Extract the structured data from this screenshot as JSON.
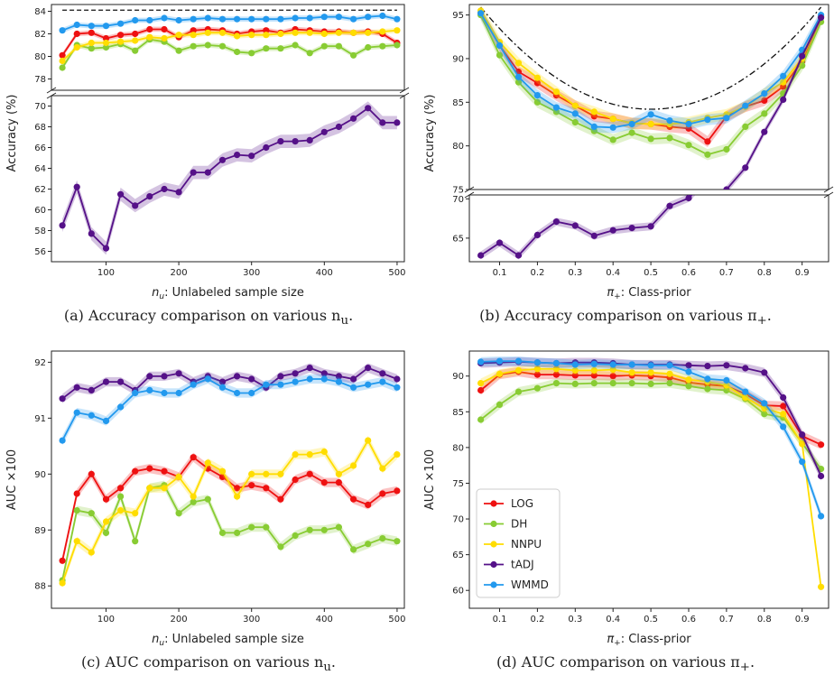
{
  "colors": {
    "LOG": "#ee1111",
    "DH": "#88cc33",
    "NNPU": "#ffdd00",
    "tADJ": "#551188",
    "WMMD": "#2299ee"
  },
  "chart_data": [
    {
      "id": "a",
      "type": "line",
      "caption": "(a) Accuracy comparison on various n",
      "caption_sub": "u",
      "caption_end": ".",
      "xlabel_var": "n",
      "xlabel_sub": "u",
      "xlabel_rest": ": Unlabeled sample size",
      "ylabel": "Accuracy (%)",
      "xlim": [
        25,
        510
      ],
      "xticks": [
        100,
        200,
        300,
        400,
        500
      ],
      "broken": true,
      "ylim_top": [
        77,
        84.6
      ],
      "yticks_top": [
        78,
        80,
        82,
        84
      ],
      "ylim_bottom": [
        55,
        71
      ],
      "yticks_bottom": [
        56,
        58,
        60,
        62,
        64,
        66,
        68,
        70
      ],
      "reference": {
        "y": 84.1,
        "style": "dashed"
      },
      "x": [
        40,
        60,
        80,
        100,
        120,
        140,
        160,
        180,
        200,
        220,
        240,
        260,
        280,
        300,
        320,
        340,
        360,
        380,
        400,
        420,
        440,
        460,
        480,
        500
      ],
      "series": [
        {
          "name": "LOG",
          "panel": "top",
          "values": [
            80.1,
            82.0,
            82.1,
            81.6,
            81.9,
            82.0,
            82.4,
            82.4,
            81.7,
            82.3,
            82.4,
            82.3,
            82.0,
            82.2,
            82.3,
            82.1,
            82.4,
            82.3,
            82.2,
            82.2,
            82.1,
            82.2,
            82.0,
            81.2
          ]
        },
        {
          "name": "DH",
          "panel": "top",
          "values": [
            79.0,
            81.0,
            80.7,
            80.8,
            81.1,
            80.5,
            81.5,
            81.3,
            80.5,
            80.9,
            81.0,
            80.9,
            80.4,
            80.3,
            80.7,
            80.7,
            81.0,
            80.3,
            80.9,
            80.9,
            80.1,
            80.8,
            80.9,
            81.0
          ]
        },
        {
          "name": "NNPU",
          "panel": "top",
          "values": [
            79.6,
            80.8,
            81.2,
            81.2,
            81.3,
            81.4,
            81.7,
            81.6,
            81.9,
            81.9,
            82.1,
            82.1,
            81.8,
            81.9,
            81.9,
            82.0,
            82.1,
            82.1,
            82.0,
            82.1,
            82.1,
            82.1,
            82.2,
            82.3
          ]
        },
        {
          "name": "WMMD",
          "panel": "top",
          "values": [
            82.3,
            82.8,
            82.7,
            82.7,
            82.9,
            83.2,
            83.2,
            83.4,
            83.2,
            83.3,
            83.4,
            83.3,
            83.3,
            83.3,
            83.3,
            83.3,
            83.4,
            83.4,
            83.5,
            83.5,
            83.3,
            83.5,
            83.6,
            83.3
          ]
        },
        {
          "name": "tADJ",
          "panel": "bottom",
          "values": [
            58.5,
            62.2,
            57.7,
            56.3,
            61.5,
            60.4,
            61.3,
            62.0,
            61.7,
            63.6,
            63.6,
            64.8,
            65.3,
            65.2,
            66.0,
            66.6,
            66.6,
            66.7,
            67.5,
            68.0,
            68.8,
            69.8,
            68.4,
            68.4
          ]
        }
      ]
    },
    {
      "id": "b",
      "type": "line",
      "caption": "(b) Accuracy comparison on various π",
      "caption_sub": "+",
      "caption_end": ".",
      "xlabel_var": "π",
      "xlabel_sub": "+",
      "xlabel_rest": ": Class-prior",
      "ylabel": "Accuracy (%)",
      "xlim": [
        0.02,
        0.97
      ],
      "xticks": [
        0.1,
        0.2,
        0.3,
        0.4,
        0.5,
        0.6,
        0.7,
        0.8,
        0.9
      ],
      "broken": true,
      "ylim_top": [
        75,
        96.2
      ],
      "yticks_top": [
        75,
        80,
        85,
        90,
        95
      ],
      "ylim_bottom": [
        62,
        70.5
      ],
      "yticks_bottom": [
        65,
        70
      ],
      "reference": {
        "curve": "dashdot",
        "label": ""
      },
      "x": [
        0.05,
        0.1,
        0.15,
        0.2,
        0.25,
        0.3,
        0.35,
        0.4,
        0.45,
        0.5,
        0.55,
        0.6,
        0.65,
        0.7,
        0.75,
        0.8,
        0.85,
        0.9,
        0.95
      ],
      "series": [
        {
          "name": "LOG",
          "panel": "top",
          "values": [
            95.2,
            91.5,
            88.5,
            87.2,
            85.8,
            84.6,
            83.4,
            83.1,
            82.6,
            82.5,
            82.2,
            82.0,
            80.5,
            83.4,
            84.5,
            85.2,
            86.8,
            89.7,
            94.8
          ]
        },
        {
          "name": "DH",
          "panel": "top",
          "values": [
            95.0,
            90.4,
            87.3,
            85.0,
            83.9,
            82.7,
            81.7,
            80.7,
            81.5,
            80.8,
            80.9,
            80.1,
            79.0,
            79.6,
            82.2,
            83.7,
            86.0,
            89.2,
            94.2
          ]
        },
        {
          "name": "NNPU",
          "panel": "top",
          "values": [
            95.5,
            91.9,
            89.5,
            87.8,
            86.2,
            84.6,
            83.9,
            83.1,
            82.6,
            82.5,
            82.5,
            82.7,
            83.2,
            83.6,
            84.5,
            86.0,
            87.3,
            90.0,
            94.8
          ]
        },
        {
          "name": "WMMD",
          "panel": "top",
          "values": [
            95.2,
            91.5,
            87.9,
            85.8,
            84.4,
            83.7,
            82.2,
            82.1,
            82.5,
            83.6,
            82.9,
            82.5,
            83.0,
            83.2,
            84.6,
            86.0,
            88.0,
            91.0,
            95.0
          ]
        },
        {
          "name": "tADJ",
          "panel": "mixed",
          "values": [
            62.8,
            64.4,
            62.8,
            65.4,
            67.1,
            66.6,
            65.3,
            66.0,
            66.3,
            66.5,
            69.1,
            70.1,
            72.5,
            75.0,
            77.5,
            81.6,
            85.3,
            90.3,
            94.7
          ]
        }
      ]
    },
    {
      "id": "c",
      "type": "line",
      "caption": "(c) AUC comparison on various n",
      "caption_sub": "u",
      "caption_end": ".",
      "xlabel_var": "n",
      "xlabel_sub": "u",
      "xlabel_rest": ": Unlabeled sample size",
      "ylabel": "AUC ×100",
      "xlim": [
        25,
        510
      ],
      "xticks": [
        100,
        200,
        300,
        400,
        500
      ],
      "broken": false,
      "ylim": [
        87.6,
        92.2
      ],
      "yticks": [
        88,
        89,
        90,
        91,
        92
      ],
      "x": [
        40,
        60,
        80,
        100,
        120,
        140,
        160,
        180,
        200,
        220,
        240,
        260,
        280,
        300,
        320,
        340,
        360,
        380,
        400,
        420,
        440,
        460,
        480,
        500
      ],
      "series": [
        {
          "name": "LOG",
          "values": [
            88.45,
            89.65,
            90.0,
            89.55,
            89.75,
            90.05,
            90.1,
            90.05,
            89.95,
            90.3,
            90.1,
            89.95,
            89.75,
            89.8,
            89.75,
            89.55,
            89.9,
            90.0,
            89.85,
            89.85,
            89.55,
            89.45,
            89.65,
            89.7
          ]
        },
        {
          "name": "DH",
          "values": [
            88.1,
            89.35,
            89.3,
            88.95,
            89.6,
            88.8,
            89.75,
            89.8,
            89.3,
            89.5,
            89.55,
            88.95,
            88.95,
            89.05,
            89.05,
            88.7,
            88.9,
            89.0,
            89.0,
            89.05,
            88.65,
            88.75,
            88.85,
            88.8
          ]
        },
        {
          "name": "NNPU",
          "values": [
            88.05,
            88.8,
            88.6,
            89.15,
            89.35,
            89.3,
            89.75,
            89.75,
            89.95,
            89.6,
            90.2,
            90.05,
            89.6,
            90.0,
            90.0,
            90.0,
            90.35,
            90.35,
            90.4,
            90.0,
            90.15,
            90.6,
            90.1,
            90.35
          ]
        },
        {
          "name": "tADJ",
          "values": [
            91.35,
            91.55,
            91.5,
            91.65,
            91.65,
            91.5,
            91.75,
            91.75,
            91.8,
            91.65,
            91.75,
            91.65,
            91.75,
            91.7,
            91.55,
            91.75,
            91.8,
            91.9,
            91.8,
            91.75,
            91.7,
            91.9,
            91.8,
            91.7
          ]
        },
        {
          "name": "WMMD",
          "values": [
            90.6,
            91.1,
            91.05,
            90.95,
            91.2,
            91.45,
            91.5,
            91.45,
            91.45,
            91.6,
            91.7,
            91.55,
            91.45,
            91.45,
            91.6,
            91.6,
            91.65,
            91.7,
            91.7,
            91.65,
            91.55,
            91.6,
            91.65,
            91.55
          ]
        }
      ]
    },
    {
      "id": "d",
      "type": "line",
      "caption": "(d) AUC comparison on various π",
      "caption_sub": "+",
      "caption_end": ".",
      "xlabel_var": "π",
      "xlabel_sub": "+",
      "xlabel_rest": ": Class-prior",
      "ylabel": "AUC ×100",
      "xlim": [
        0.02,
        0.97
      ],
      "xticks": [
        0.1,
        0.2,
        0.3,
        0.4,
        0.5,
        0.6,
        0.7,
        0.8,
        0.9
      ],
      "broken": false,
      "ylim": [
        57.5,
        93.5
      ],
      "yticks": [
        60,
        65,
        70,
        75,
        80,
        85,
        90
      ],
      "legend": {
        "position": "lower-left",
        "entries": [
          "LOG",
          "DH",
          "NNPU",
          "tADJ",
          "WMMD"
        ]
      },
      "x": [
        0.05,
        0.1,
        0.15,
        0.2,
        0.25,
        0.3,
        0.35,
        0.4,
        0.45,
        0.5,
        0.55,
        0.6,
        0.65,
        0.7,
        0.75,
        0.8,
        0.85,
        0.9,
        0.95
      ],
      "series": [
        {
          "name": "LOG",
          "values": [
            88.0,
            90.2,
            90.6,
            90.2,
            90.2,
            90.1,
            90.1,
            90.0,
            90.1,
            90.0,
            89.8,
            89.1,
            88.8,
            88.6,
            87.5,
            85.9,
            85.8,
            81.6,
            80.4
          ]
        },
        {
          "name": "DH",
          "values": [
            83.9,
            86.0,
            87.8,
            88.3,
            89.0,
            88.9,
            89.0,
            89.0,
            89.0,
            88.9,
            89.0,
            88.6,
            88.2,
            88.0,
            86.8,
            84.7,
            84.2,
            80.6,
            77.0
          ]
        },
        {
          "name": "NNPU",
          "values": [
            89.0,
            90.3,
            90.8,
            91.0,
            91.0,
            90.8,
            90.8,
            90.9,
            90.5,
            90.5,
            90.3,
            89.5,
            89.2,
            88.7,
            87.0,
            85.5,
            84.7,
            80.5,
            60.5
          ]
        },
        {
          "name": "tADJ",
          "values": [
            91.8,
            91.9,
            92.0,
            91.9,
            91.8,
            91.9,
            91.9,
            91.8,
            91.6,
            91.6,
            91.6,
            91.5,
            91.4,
            91.5,
            91.1,
            90.5,
            87.0,
            81.8,
            76.0
          ]
        },
        {
          "name": "WMMD",
          "values": [
            92.0,
            92.1,
            92.1,
            91.9,
            91.8,
            91.6,
            91.7,
            91.6,
            91.6,
            91.5,
            91.5,
            90.6,
            89.6,
            89.4,
            87.8,
            86.2,
            82.9,
            78.0,
            70.4
          ]
        }
      ]
    }
  ]
}
